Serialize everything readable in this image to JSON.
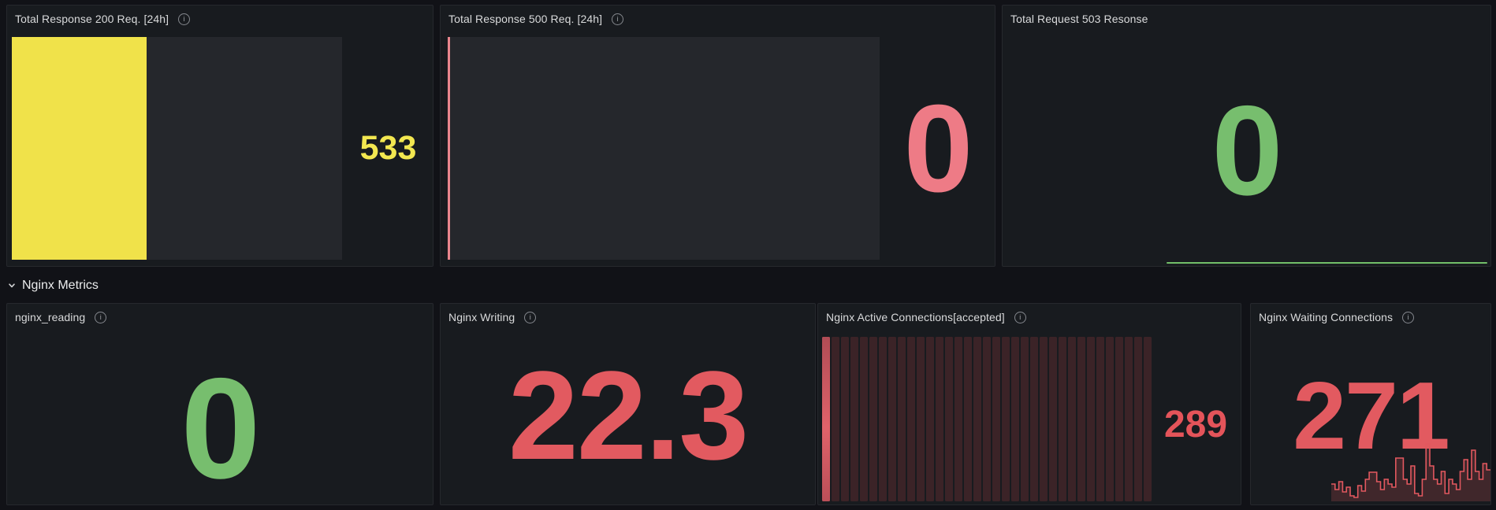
{
  "theme": {
    "page_bg": "#111217",
    "panel_bg": "#181b1f",
    "title_color": "#d9dadb",
    "yellow": "#f0e24a",
    "light_red": "#ee7b86",
    "red": "#e25a60",
    "green": "#77be6e"
  },
  "section": {
    "title": "Nginx Metrics",
    "collapse_icon": "chevron-down-icon",
    "collapsed": false
  },
  "panels": {
    "p200": {
      "title": "Total Response 200 Req. [24h]",
      "has_info_icon": true,
      "value": "533",
      "color": "#f2e750",
      "gauge": {
        "type": "bar-horizontal",
        "fill_pct": 40.8,
        "fill_color": "#f0e24a",
        "track_color": "#25272c"
      }
    },
    "p500": {
      "title": "Total Response 500 Req. [24h]",
      "has_info_icon": true,
      "value": "0",
      "color": "#ee7b86",
      "gauge": {
        "type": "bar-horizontal",
        "fill_pct": 0.55,
        "fill_color": "#e9868d",
        "track_color": "#25272c"
      }
    },
    "p503": {
      "title": "Total Request 503 Resonse",
      "has_info_icon": false,
      "value": "0",
      "color": "#77be6e",
      "sparkline": {
        "flat": true,
        "value_level": 0,
        "color": "#73bf69"
      }
    },
    "reading": {
      "title": "nginx_reading",
      "has_info_icon": true,
      "value": "0",
      "color": "#77be6e"
    },
    "writing": {
      "title": "Nginx Writing",
      "has_info_icon": true,
      "value": "22.3",
      "color": "#e25a60"
    },
    "active": {
      "title": "Nginx Active Connections[accepted]",
      "has_info_icon": true,
      "value": "289",
      "color": "#e4545a",
      "lcd": {
        "type": "retro-lcd-gauge",
        "total_cells": 35,
        "lit_cells": 1,
        "lit_color": "#e0626a",
        "unlit_color": "#3b2327"
      }
    },
    "waiting": {
      "title": "Nginx Waiting Connections",
      "has_info_icon": true,
      "value": "271",
      "color": "#e25a60",
      "sparkline": {
        "type": "step-line",
        "stroke": "#e2585f",
        "fill": "rgba(226,90,96,0.2)",
        "values": [
          22,
          15,
          25,
          12,
          18,
          7,
          5,
          20,
          13,
          28,
          37,
          37,
          25,
          15,
          28,
          22,
          18,
          55,
          55,
          28,
          22,
          45,
          10,
          7,
          28,
          73,
          45,
          28,
          22,
          38,
          10,
          28,
          22,
          15,
          38,
          53,
          28,
          65,
          38,
          28,
          48,
          40
        ]
      }
    }
  }
}
